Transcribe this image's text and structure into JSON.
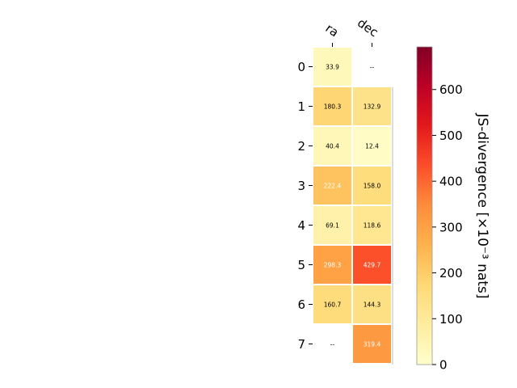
{
  "chart_data": {
    "type": "heatmap",
    "columns": [
      "ra",
      "dec"
    ],
    "rows": [
      "0",
      "1",
      "2",
      "3",
      "4",
      "5",
      "6",
      "7"
    ],
    "values": [
      [
        33.9,
        null
      ],
      [
        180.3,
        132.9
      ],
      [
        40.4,
        12.4
      ],
      [
        222.4,
        158.0
      ],
      [
        69.1,
        118.6
      ],
      [
        298.3,
        429.7
      ],
      [
        160.7,
        144.3
      ],
      [
        null,
        319.4
      ]
    ],
    "cell_text": [
      [
        "33.9",
        "--"
      ],
      [
        "180.3",
        "132.9"
      ],
      [
        "40.4",
        "12.4"
      ],
      [
        "222.4",
        "158.0"
      ],
      [
        "69.1",
        "118.6"
      ],
      [
        "298.3",
        "429.7"
      ],
      [
        "160.7",
        "144.3"
      ],
      [
        "--",
        "319.4"
      ]
    ],
    "colorbar": {
      "label": "JS-divergence [×10⁻³ nats]",
      "range": [
        0,
        693
      ],
      "ticks": [
        0,
        100,
        200,
        300,
        400,
        500,
        600
      ],
      "tick_labels": [
        "0",
        "100",
        "200",
        "300",
        "400",
        "500",
        "600"
      ],
      "colormap": "YlOrRd"
    },
    "grid": false,
    "colors": {
      "low": "#ffffcc",
      "high": "#800026",
      "cell_border": "#ffffff"
    }
  }
}
